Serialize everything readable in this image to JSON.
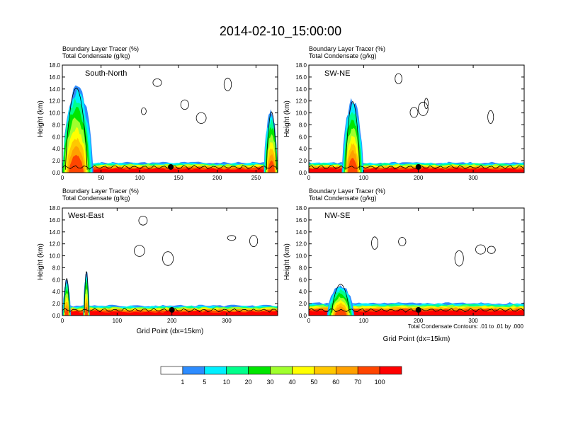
{
  "figure": {
    "title": "2014-02-10_15:00:00",
    "contour_note": "Total Condensate Contours: .01 to .01 by .000",
    "colors": {
      "red": "#ff0000",
      "orange_red": "#ff4500",
      "orange": "#ffa000",
      "gold": "#ffc800",
      "yellow": "#ffff00",
      "yellow_green": "#a0ff2d",
      "green": "#00e600",
      "spring_green": "#00ff8c",
      "cyan": "#00f0ff",
      "blue": "#2d8cff",
      "contour": "#000000"
    }
  },
  "colorbar": {
    "labels": [
      "1",
      "5",
      "10",
      "20",
      "30",
      "40",
      "50",
      "60",
      "70",
      "100"
    ],
    "colors": [
      "#ffffff",
      "#2d8cff",
      "#00f0ff",
      "#00ff8c",
      "#00e600",
      "#a0ff2d",
      "#ffff00",
      "#ffc800",
      "#ffa000",
      "#ff4500",
      "#ff0000"
    ]
  },
  "chart_data": [
    {
      "type": "heatmap",
      "title": "South-North",
      "subtitle_1": "Boundary Layer Tracer   (%)",
      "subtitle_2": "Total Condensate   (g/kg)",
      "ylabel": "Height (km)",
      "xlabel": "",
      "xlim": [
        0,
        278
      ],
      "ylim": [
        0,
        18
      ],
      "x_ticks": [
        0,
        50,
        100,
        150,
        200,
        250
      ],
      "y_ticks": [
        "0.0",
        "2.0",
        "4.0",
        "6.0",
        "8.0",
        "10.0",
        "12.0",
        "14.0",
        "16.0",
        "18.0"
      ],
      "marker_x": 140,
      "boundary_layer_top_km": 1.6,
      "plumes": [
        {
          "x0": 0,
          "x1": 44,
          "top_km": 14.4,
          "peak_x": 18
        },
        {
          "x0": 258,
          "x1": 278,
          "top_km": 10.2,
          "peak_x": 270
        }
      ],
      "contour_labels": [
        "0.01",
        "0.01"
      ]
    },
    {
      "type": "heatmap",
      "title": "SW-NE",
      "subtitle_1": "Boundary Layer Tracer   (%)",
      "subtitle_2": "Total Condensate   (g/kg)",
      "ylabel": "Height (km)",
      "xlabel": "",
      "xlim": [
        0,
        393
      ],
      "ylim": [
        0,
        18
      ],
      "x_ticks": [
        0,
        100,
        200,
        300
      ],
      "y_ticks": [
        "0.0",
        "2.0",
        "4.0",
        "6.0",
        "8.0",
        "10.0",
        "12.0",
        "14.0",
        "16.0",
        "18.0"
      ],
      "marker_x": 200,
      "boundary_layer_top_km": 1.6,
      "plumes": [
        {
          "x0": 55,
          "x1": 95,
          "top_km": 12.0,
          "peak_x": 80
        }
      ]
    },
    {
      "type": "heatmap",
      "title": "West-East",
      "subtitle_1": "Boundary Layer Tracer   (%)",
      "subtitle_2": "Total Condensate   (g/kg)",
      "ylabel": "Height (km)",
      "xlabel": "Grid Point (dx=15km)",
      "xlim": [
        0,
        393
      ],
      "ylim": [
        0,
        18
      ],
      "x_ticks": [
        0,
        100,
        200,
        300
      ],
      "y_ticks": [
        "0.0",
        "2.0",
        "4.0",
        "6.0",
        "8.0",
        "10.0",
        "12.0",
        "14.0",
        "16.0",
        "18.0"
      ],
      "marker_x": 200,
      "boundary_layer_top_km": 1.6,
      "plumes": [
        {
          "x0": 0,
          "x1": 15,
          "top_km": 6.0,
          "peak_x": 8
        },
        {
          "x0": 38,
          "x1": 50,
          "top_km": 7.2,
          "peak_x": 44
        }
      ]
    },
    {
      "type": "heatmap",
      "title": "NW-SE",
      "subtitle_1": "Boundary Layer Tracer   (%)",
      "subtitle_2": "Total Condensate   (g/kg)",
      "ylabel": "Height (km)",
      "xlabel": "Grid Point (dx=15km)",
      "xlim": [
        0,
        393
      ],
      "ylim": [
        0,
        18
      ],
      "x_ticks": [
        0,
        100,
        200,
        300
      ],
      "y_ticks": [
        "0.0",
        "2.0",
        "4.0",
        "6.0",
        "8.0",
        "10.0",
        "12.0",
        "14.0",
        "16.0",
        "18.0"
      ],
      "marker_x": 200,
      "boundary_layer_top_km": 2.0,
      "plumes": [
        {
          "x0": 30,
          "x1": 80,
          "top_km": 5.0,
          "peak_x": 58
        }
      ]
    }
  ]
}
